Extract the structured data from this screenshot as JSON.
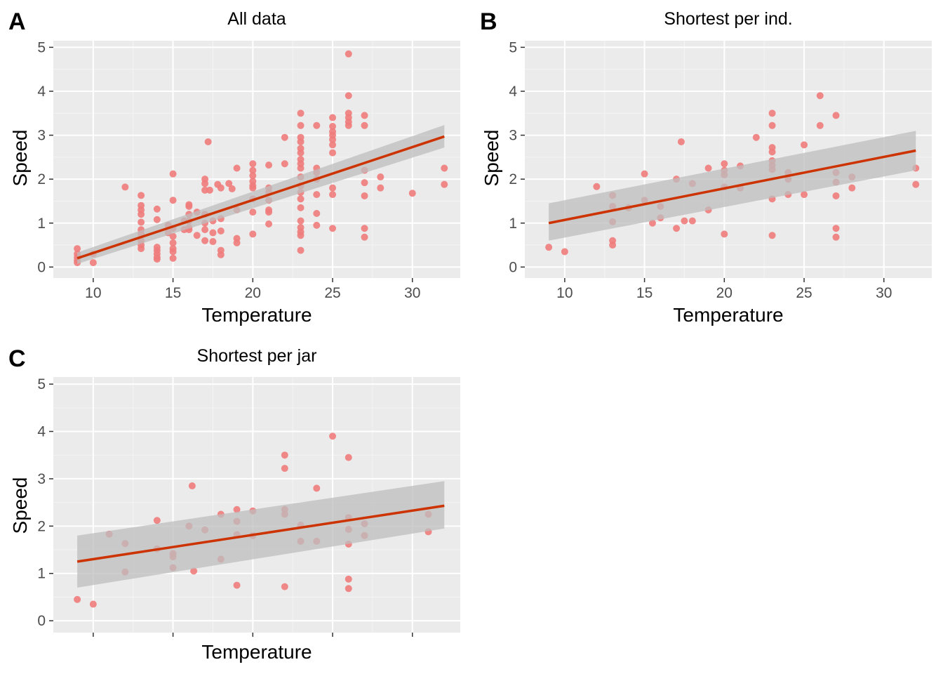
{
  "colors": {
    "panel_bg": "#ebebeb",
    "grid_major": "#ffffff",
    "grid_minor": "#f4f4f4",
    "point": "#f07c7c",
    "fit_line": "#cc3300",
    "ribbon": "#bdbdbd",
    "tick": "#333333",
    "tick_label": "#4d4d4d"
  },
  "chart_data": [
    {
      "type": "scatter",
      "letter": "A",
      "title": "All data",
      "xlabel": "Temperature",
      "ylabel": "Speed",
      "xlim": [
        7.5,
        33
      ],
      "ylim": [
        -0.25,
        5.15
      ],
      "xticks": [
        10,
        15,
        20,
        25,
        30
      ],
      "xtick_labels": [
        "10",
        "15",
        "20",
        "25",
        "30"
      ],
      "yticks": [
        0,
        1,
        2,
        3,
        4,
        5
      ],
      "ytick_labels": [
        "0",
        "1",
        "2",
        "3",
        "4",
        "5"
      ],
      "grid": true,
      "fit": {
        "x": [
          9,
          32
        ],
        "y": [
          0.2,
          2.97
        ],
        "lower": [
          0.07,
          2.72
        ],
        "upper": [
          0.33,
          3.23
        ]
      },
      "points": [
        [
          9,
          0.42
        ],
        [
          9,
          0.3
        ],
        [
          9,
          0.22
        ],
        [
          9,
          0.15
        ],
        [
          9,
          0.1
        ],
        [
          10,
          0.3
        ],
        [
          10,
          0.1
        ],
        [
          12,
          1.82
        ],
        [
          13,
          1.63
        ],
        [
          13,
          1.4
        ],
        [
          13,
          1.3
        ],
        [
          13,
          1.2
        ],
        [
          13,
          1.02
        ],
        [
          13,
          0.85
        ],
        [
          13,
          0.75
        ],
        [
          13,
          0.6
        ],
        [
          13,
          0.5
        ],
        [
          13,
          0.42
        ],
        [
          14,
          1.32
        ],
        [
          14,
          1.08
        ],
        [
          14,
          0.45
        ],
        [
          14,
          0.38
        ],
        [
          14,
          0.3
        ],
        [
          14,
          0.22
        ],
        [
          14,
          0.18
        ],
        [
          14.7,
          0.95
        ],
        [
          14.7,
          0.78
        ],
        [
          15,
          2.12
        ],
        [
          15,
          1.52
        ],
        [
          15,
          0.88
        ],
        [
          15,
          0.7
        ],
        [
          15,
          0.55
        ],
        [
          15,
          0.42
        ],
        [
          15,
          0.35
        ],
        [
          15,
          0.2
        ],
        [
          15.7,
          1.05
        ],
        [
          15.7,
          0.85
        ],
        [
          16,
          1.42
        ],
        [
          16,
          1.38
        ],
        [
          16,
          1.2
        ],
        [
          16,
          1.05
        ],
        [
          16,
          0.9
        ],
        [
          16,
          0.85
        ],
        [
          16.5,
          1.25
        ],
        [
          16.5,
          0.72
        ],
        [
          17,
          2.0
        ],
        [
          17,
          1.9
        ],
        [
          17,
          1.75
        ],
        [
          17,
          1.2
        ],
        [
          17,
          1.0
        ],
        [
          17,
          0.85
        ],
        [
          17,
          0.6
        ],
        [
          17.2,
          2.85
        ],
        [
          17.3,
          1.75
        ],
        [
          17.5,
          1.05
        ],
        [
          17.5,
          0.78
        ],
        [
          17.5,
          0.58
        ],
        [
          17.8,
          1.88
        ],
        [
          18,
          1.8
        ],
        [
          18,
          1.1
        ],
        [
          18,
          0.82
        ],
        [
          18,
          0.38
        ],
        [
          18,
          0.28
        ],
        [
          18.5,
          1.9
        ],
        [
          18.7,
          1.78
        ],
        [
          19,
          2.25
        ],
        [
          19,
          1.3
        ],
        [
          19,
          0.65
        ],
        [
          19,
          0.55
        ],
        [
          20,
          2.35
        ],
        [
          20,
          2.2
        ],
        [
          20,
          2.08
        ],
        [
          20,
          1.95
        ],
        [
          20,
          1.85
        ],
        [
          20,
          1.8
        ],
        [
          20,
          1.55
        ],
        [
          20,
          1.25
        ],
        [
          20,
          0.75
        ],
        [
          21,
          2.32
        ],
        [
          21,
          1.8
        ],
        [
          21,
          1.7
        ],
        [
          21,
          1.52
        ],
        [
          21,
          1.3
        ],
        [
          21,
          1.25
        ],
        [
          21,
          0.98
        ],
        [
          22,
          2.95
        ],
        [
          22,
          2.35
        ],
        [
          23,
          3.5
        ],
        [
          23,
          3.22
        ],
        [
          23,
          2.95
        ],
        [
          23,
          2.85
        ],
        [
          23,
          2.7
        ],
        [
          23,
          2.6
        ],
        [
          23,
          2.45
        ],
        [
          23,
          2.35
        ],
        [
          23,
          2.25
        ],
        [
          23,
          2.05
        ],
        [
          23,
          1.85
        ],
        [
          23,
          1.7
        ],
        [
          23,
          1.55
        ],
        [
          23,
          1.35
        ],
        [
          23,
          1.05
        ],
        [
          23,
          0.9
        ],
        [
          23,
          0.8
        ],
        [
          23,
          0.72
        ],
        [
          23,
          0.38
        ],
        [
          24,
          3.22
        ],
        [
          24,
          2.25
        ],
        [
          24,
          2.15
        ],
        [
          24,
          2.0
        ],
        [
          24,
          1.65
        ],
        [
          24,
          1.22
        ],
        [
          24,
          0.95
        ],
        [
          25,
          3.4
        ],
        [
          25,
          3.2
        ],
        [
          25,
          3.08
        ],
        [
          25,
          3.0
        ],
        [
          25,
          2.9
        ],
        [
          25,
          2.78
        ],
        [
          25,
          2.6
        ],
        [
          25,
          1.8
        ],
        [
          25,
          1.65
        ],
        [
          25,
          0.88
        ],
        [
          26,
          4.85
        ],
        [
          26,
          3.9
        ],
        [
          26,
          3.5
        ],
        [
          26,
          3.4
        ],
        [
          26,
          3.3
        ],
        [
          26,
          3.22
        ],
        [
          27,
          3.45
        ],
        [
          27,
          3.22
        ],
        [
          27,
          2.2
        ],
        [
          27,
          1.92
        ],
        [
          27,
          1.62
        ],
        [
          27,
          0.88
        ],
        [
          27,
          0.68
        ],
        [
          28,
          2.05
        ],
        [
          28,
          1.8
        ],
        [
          30,
          1.68
        ],
        [
          32,
          2.25
        ],
        [
          32,
          1.88
        ]
      ]
    },
    {
      "type": "scatter",
      "letter": "B",
      "title": "Shortest per ind.",
      "xlabel": "Temperature",
      "ylabel": "Speed",
      "xlim": [
        7.5,
        33
      ],
      "ylim": [
        -0.25,
        5.15
      ],
      "xticks": [
        10,
        15,
        20,
        25,
        30
      ],
      "xtick_labels": [
        "10",
        "15",
        "20",
        "25",
        "30"
      ],
      "yticks": [
        0,
        1,
        2,
        3,
        4,
        5
      ],
      "ytick_labels": [
        "0",
        "1",
        "2",
        "3",
        "4",
        "5"
      ],
      "grid": true,
      "fit": {
        "x": [
          9,
          32
        ],
        "y": [
          1.0,
          2.65
        ],
        "lower": [
          0.6,
          2.2
        ],
        "upper": [
          1.45,
          3.1
        ]
      },
      "points": [
        [
          9,
          0.45
        ],
        [
          10,
          0.35
        ],
        [
          12,
          1.83
        ],
        [
          13,
          1.63
        ],
        [
          13,
          1.38
        ],
        [
          13,
          1.03
        ],
        [
          13,
          0.6
        ],
        [
          13,
          0.5
        ],
        [
          14,
          1.35
        ],
        [
          15,
          2.12
        ],
        [
          15,
          1.52
        ],
        [
          15.5,
          1.0
        ],
        [
          16,
          1.38
        ],
        [
          16,
          1.12
        ],
        [
          17,
          2.0
        ],
        [
          17,
          0.88
        ],
        [
          17.3,
          2.85
        ],
        [
          17.5,
          1.05
        ],
        [
          18,
          1.9
        ],
        [
          18,
          1.05
        ],
        [
          19,
          2.25
        ],
        [
          19,
          1.3
        ],
        [
          20,
          2.35
        ],
        [
          20,
          2.2
        ],
        [
          20,
          2.1
        ],
        [
          20,
          1.82
        ],
        [
          20,
          0.75
        ],
        [
          21,
          2.3
        ],
        [
          21,
          1.8
        ],
        [
          22,
          2.95
        ],
        [
          23,
          3.5
        ],
        [
          23,
          3.22
        ],
        [
          23,
          2.72
        ],
        [
          23,
          2.62
        ],
        [
          23,
          2.42
        ],
        [
          23,
          2.32
        ],
        [
          23,
          2.22
        ],
        [
          23,
          1.55
        ],
        [
          23,
          0.72
        ],
        [
          24,
          2.15
        ],
        [
          24,
          2.0
        ],
        [
          24,
          1.65
        ],
        [
          25,
          2.78
        ],
        [
          25,
          1.65
        ],
        [
          26,
          3.9
        ],
        [
          26,
          3.22
        ],
        [
          27,
          3.45
        ],
        [
          27,
          2.15
        ],
        [
          27,
          1.93
        ],
        [
          27,
          1.62
        ],
        [
          27,
          0.88
        ],
        [
          27,
          0.68
        ],
        [
          28,
          2.05
        ],
        [
          28,
          1.8
        ],
        [
          32,
          2.25
        ],
        [
          32,
          1.88
        ]
      ]
    },
    {
      "type": "scatter",
      "letter": "C",
      "title": "Shortest per jar",
      "xlabel": "Temperature",
      "ylabel": "Speed",
      "xlim": [
        7.5,
        33
      ],
      "ylim": [
        -0.25,
        5.15
      ],
      "xticks": [
        10,
        15,
        20,
        25,
        30
      ],
      "xtick_labels": [
        "",
        "",
        "",
        "",
        ""
      ],
      "yticks": [
        0,
        1,
        2,
        3,
        4,
        5
      ],
      "ytick_labels": [
        "0",
        "1",
        "2",
        "3",
        "4",
        "5"
      ],
      "grid": true,
      "fit": {
        "x": [
          9,
          32
        ],
        "y": [
          1.25,
          2.43
        ],
        "lower": [
          0.7,
          1.95
        ],
        "upper": [
          1.8,
          2.95
        ]
      },
      "points": [
        [
          9,
          0.45
        ],
        [
          10,
          0.35
        ],
        [
          11,
          1.83
        ],
        [
          12,
          1.63
        ],
        [
          12,
          1.03
        ],
        [
          14,
          2.12
        ],
        [
          14,
          1.52
        ],
        [
          15,
          1.42
        ],
        [
          15,
          1.35
        ],
        [
          15,
          1.12
        ],
        [
          16,
          2.0
        ],
        [
          16.2,
          2.85
        ],
        [
          16.3,
          1.05
        ],
        [
          17,
          1.92
        ],
        [
          18,
          2.25
        ],
        [
          18,
          1.3
        ],
        [
          19,
          2.35
        ],
        [
          19,
          2.1
        ],
        [
          19,
          1.82
        ],
        [
          19,
          0.75
        ],
        [
          20,
          2.32
        ],
        [
          20,
          1.8
        ],
        [
          22,
          3.5
        ],
        [
          22,
          3.22
        ],
        [
          22,
          2.35
        ],
        [
          22,
          2.25
        ],
        [
          22,
          0.72
        ],
        [
          23,
          2.02
        ],
        [
          23,
          1.68
        ],
        [
          24,
          2.8
        ],
        [
          24,
          1.68
        ],
        [
          25,
          3.9
        ],
        [
          26,
          3.45
        ],
        [
          26,
          2.18
        ],
        [
          26,
          1.93
        ],
        [
          26,
          1.62
        ],
        [
          26,
          0.88
        ],
        [
          26,
          0.68
        ],
        [
          27,
          2.05
        ],
        [
          27,
          1.8
        ],
        [
          31,
          2.25
        ],
        [
          31,
          1.88
        ]
      ]
    }
  ]
}
